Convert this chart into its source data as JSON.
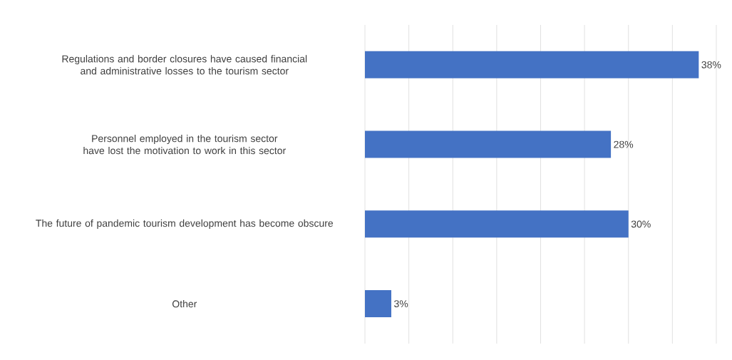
{
  "chart_data": {
    "type": "bar",
    "orientation": "horizontal",
    "categories": [
      "Regulations and border closures have caused financial and administrative losses to the tourism sector",
      "Personnel employed in the tourism sector have lost the motivation to work in this sector",
      "The future of pandemic tourism development has become obscure",
      "Other"
    ],
    "values": [
      38,
      28,
      30,
      3
    ],
    "value_labels": [
      "38%",
      "28%",
      "30%",
      "3%"
    ],
    "color": "#4472c4",
    "xlim": [
      0,
      40
    ],
    "xticks": [
      {
        "value": 0,
        "label": null
      },
      {
        "value": 5,
        "label": null
      },
      {
        "value": 10,
        "label": null
      },
      {
        "value": 15,
        "label": null
      },
      {
        "value": 20,
        "label": null
      },
      {
        "value": 25,
        "label": null
      },
      {
        "value": 30,
        "label": null
      },
      {
        "value": 35,
        "label": null
      },
      {
        "value": 40,
        "label": null
      }
    ],
    "grid": "x",
    "tick_labels": "y"
  }
}
